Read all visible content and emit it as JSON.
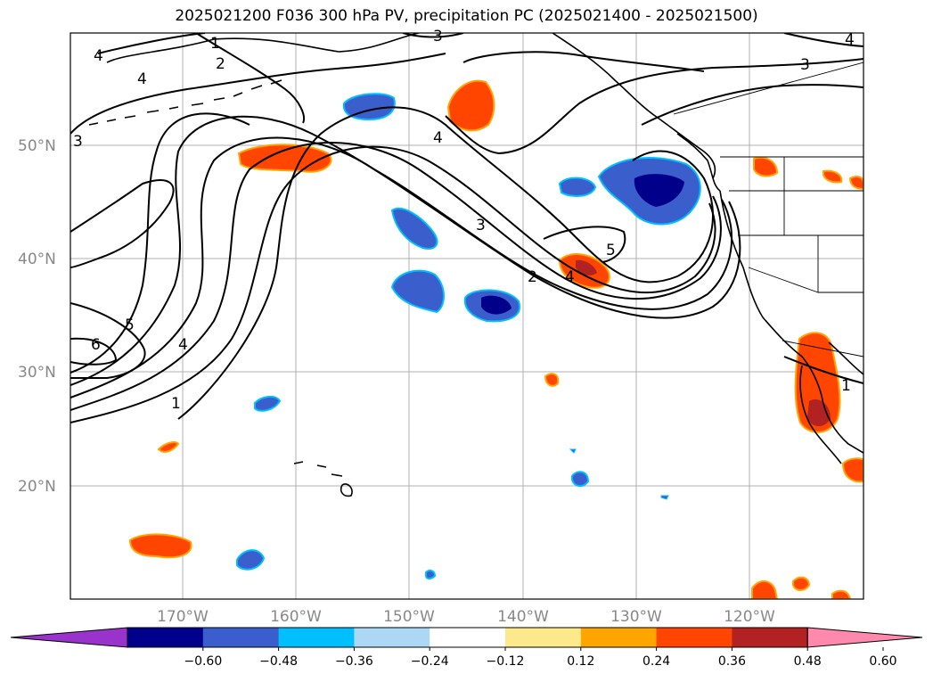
{
  "title": "2025021200 F036 300 hPa PV, precipitation PC (2025021400 - 2025021500)",
  "map": {
    "lat_ticks": [
      "50°N",
      "40°N",
      "30°N",
      "20°N"
    ],
    "lon_ticks": [
      "170°W",
      "160°W",
      "150°W",
      "140°W",
      "130°W",
      "120°W"
    ],
    "contour_labels": [
      "1",
      "2",
      "3",
      "4",
      "4",
      "3",
      "4",
      "2",
      "3",
      "4",
      "5",
      "6",
      "5",
      "4",
      "1",
      "3",
      "4",
      "1"
    ]
  },
  "colorbar": {
    "labels": [
      "−0.60",
      "−0.48",
      "−0.36",
      "−0.24",
      "−0.12",
      "0.12",
      "0.24",
      "0.36",
      "0.48",
      "0.60"
    ],
    "colors": [
      "#9933cc",
      "#00008b",
      "#3a5fcd",
      "#00bfff",
      "#add8f5",
      "#ffffff",
      "#fce98c",
      "#ffa500",
      "#ff4500",
      "#b22222",
      "#ff89ad"
    ]
  },
  "colors": {
    "grid": "#b0b0b0",
    "coast": "#000000",
    "pos_light": "#ffa500",
    "pos_mid": "#ff4500",
    "pos_dark": "#b22222",
    "neg_mid": "#3a5fcd",
    "neg_dark": "#00008b",
    "neg_light": "#00bfff"
  }
}
